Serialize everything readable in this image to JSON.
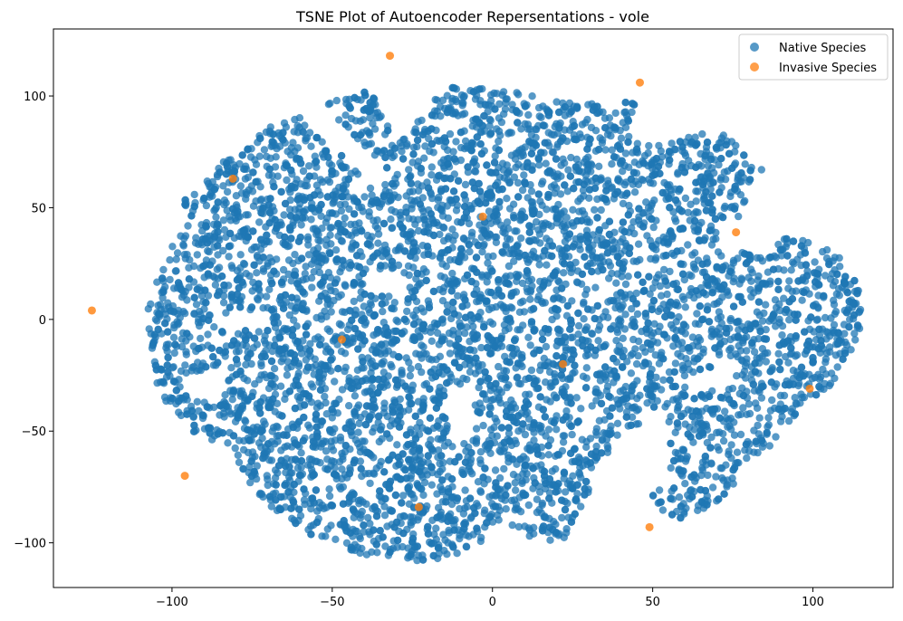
{
  "chart_data": {
    "type": "scatter",
    "title": "TSNE Plot of Autoencoder Repersentations - vole",
    "xlabel": "",
    "ylabel": "",
    "xlim": [
      -137,
      125
    ],
    "ylim": [
      -120,
      130
    ],
    "xticks": [
      -100,
      -50,
      0,
      50,
      100
    ],
    "yticks": [
      -100,
      -50,
      0,
      50,
      100
    ],
    "xtick_labels": [
      "−100",
      "−50",
      "0",
      "50",
      "100"
    ],
    "ytick_labels": [
      "−100",
      "−50",
      "0",
      "50",
      "100"
    ],
    "grid": false,
    "legend": {
      "placement": "top-right",
      "entries": [
        "Native Species",
        "Invasive Species"
      ]
    },
    "colors": {
      "native": "#1f77b4",
      "invasive": "#ff7f0e"
    },
    "series": [
      {
        "name": "Native Species",
        "description_of_shape": "dense cloud of ~20000 points",
        "points": [],
        "cloud_hull": [
          [
            -108,
            5
          ],
          [
            -105,
            20
          ],
          [
            -98,
            42
          ],
          [
            -95,
            58
          ],
          [
            -85,
            70
          ],
          [
            -75,
            80
          ],
          [
            -65,
            92
          ],
          [
            -55,
            98
          ],
          [
            -45,
            101
          ],
          [
            -38,
            102
          ],
          [
            -30,
            80
          ],
          [
            -22,
            90
          ],
          [
            -15,
            104
          ],
          [
            -5,
            104
          ],
          [
            5,
            102
          ],
          [
            15,
            100
          ],
          [
            25,
            98
          ],
          [
            35,
            96
          ],
          [
            45,
            98
          ],
          [
            42,
            85
          ],
          [
            48,
            78
          ],
          [
            58,
            80
          ],
          [
            68,
            85
          ],
          [
            78,
            80
          ],
          [
            82,
            72
          ],
          [
            85,
            65
          ],
          [
            80,
            60
          ],
          [
            78,
            48
          ],
          [
            88,
            38
          ],
          [
            98,
            35
          ],
          [
            108,
            30
          ],
          [
            112,
            22
          ],
          [
            115,
            12
          ],
          [
            115,
            -5
          ],
          [
            110,
            -20
          ],
          [
            105,
            -30
          ],
          [
            95,
            -42
          ],
          [
            88,
            -55
          ],
          [
            80,
            -65
          ],
          [
            72,
            -80
          ],
          [
            60,
            -90
          ],
          [
            52,
            -85
          ],
          [
            48,
            -75
          ],
          [
            50,
            -60
          ],
          [
            48,
            -45
          ],
          [
            38,
            -55
          ],
          [
            32,
            -70
          ],
          [
            28,
            -85
          ],
          [
            22,
            -100
          ],
          [
            15,
            -98
          ],
          [
            5,
            -95
          ],
          [
            -5,
            -100
          ],
          [
            -15,
            -108
          ],
          [
            -25,
            -108
          ],
          [
            -35,
            -108
          ],
          [
            -45,
            -105
          ],
          [
            -55,
            -98
          ],
          [
            -65,
            -90
          ],
          [
            -72,
            -80
          ],
          [
            -78,
            -70
          ],
          [
            -82,
            -60
          ],
          [
            -90,
            -55
          ],
          [
            -95,
            -50
          ],
          [
            -100,
            -42
          ],
          [
            -105,
            -30
          ],
          [
            -108,
            -10
          ]
        ]
      },
      {
        "name": "Invasive Species",
        "points": [
          [
            -125,
            4
          ],
          [
            -96,
            -70
          ],
          [
            -81,
            63
          ],
          [
            -47,
            -9
          ],
          [
            -32,
            118
          ],
          [
            -23,
            -84
          ],
          [
            -3,
            46
          ],
          [
            22,
            -20
          ],
          [
            46,
            106
          ],
          [
            49,
            -93
          ],
          [
            76,
            39
          ],
          [
            99,
            -31
          ]
        ]
      }
    ]
  }
}
